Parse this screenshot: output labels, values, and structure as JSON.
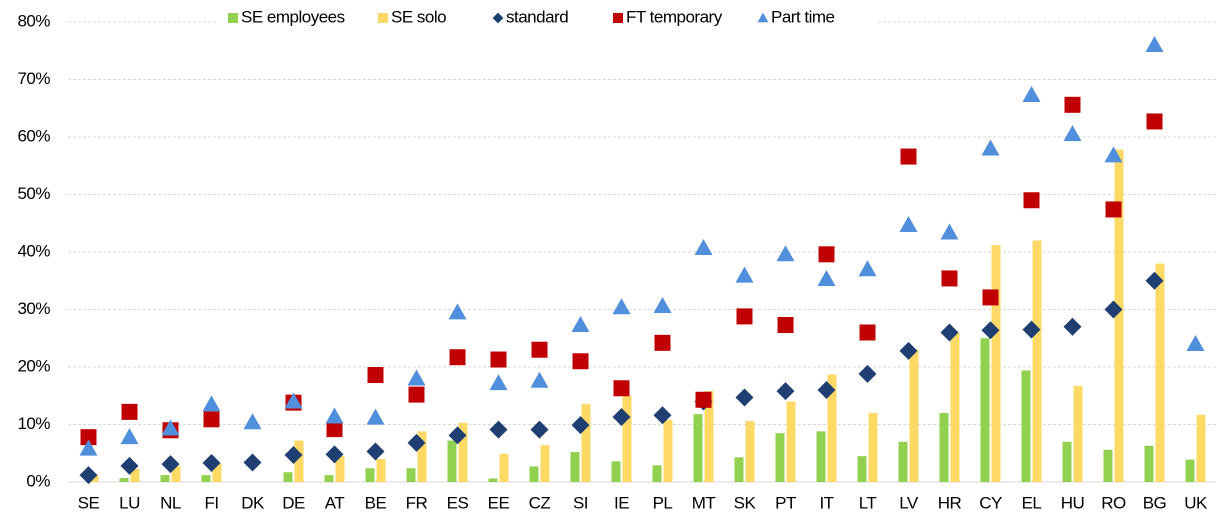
{
  "chart_data": {
    "type": "bar-scatter",
    "categories": [
      "SE",
      "LU",
      "NL",
      "FI",
      "DK",
      "DE",
      "AT",
      "BE",
      "FR",
      "ES",
      "EE",
      "CZ",
      "SI",
      "IE",
      "PL",
      "MT",
      "SK",
      "PT",
      "IT",
      "LT",
      "LV",
      "HR",
      "CY",
      "EL",
      "HU",
      "RO",
      "BG",
      "UK"
    ],
    "series": [
      {
        "name": "SE employees",
        "color": "#92d050",
        "marker": "bar",
        "values": [
          0,
          0.7,
          1.2,
          1.2,
          0,
          1.7,
          1.2,
          2.4,
          2.4,
          7.2,
          0.6,
          2.7,
          5.2,
          3.6,
          2.9,
          11.8,
          4.3,
          8.5,
          8.8,
          4.5,
          7,
          12,
          25,
          19.4,
          7,
          5.6,
          6.3,
          3.9
        ]
      },
      {
        "name": "SE solo",
        "color": "#ffd966",
        "marker": "bar",
        "values": [
          1.2,
          2.3,
          2.8,
          3.2,
          null,
          7.2,
          4.5,
          4,
          8.8,
          10.3,
          4.9,
          6.4,
          13.6,
          15,
          10.8,
          15.8,
          10.6,
          14,
          18.7,
          12,
          23,
          26,
          41.2,
          42,
          16.7,
          57.8,
          38,
          11.7
        ]
      },
      {
        "name": "standard",
        "color": "#1f3f73",
        "marker": "diamond",
        "values": [
          1.2,
          2.8,
          3.1,
          3.3,
          3.4,
          4.7,
          4.8,
          5.3,
          6.8,
          8.1,
          9.1,
          9.1,
          9.9,
          11.3,
          11.6,
          14,
          14.7,
          15.8,
          16,
          18.8,
          22.8,
          26,
          26.4,
          26.5,
          27,
          30,
          35,
          null
        ]
      },
      {
        "name": "FT temporary",
        "color": "#c00000",
        "marker": "square",
        "values": [
          7.8,
          12.2,
          9,
          10.9,
          null,
          13.8,
          9.2,
          18.6,
          15.2,
          21.7,
          21.3,
          23,
          21,
          16.3,
          24.2,
          14.3,
          28.8,
          27.3,
          39.6,
          26,
          56.6,
          35.4,
          32.1,
          49,
          65.6,
          47.4,
          62.7,
          null
        ]
      },
      {
        "name": "Part time",
        "color": "#4f8fdc",
        "marker": "triangle",
        "values": [
          5.8,
          7.8,
          9.3,
          13.5,
          10.4,
          14,
          11.4,
          11.2,
          18,
          29.5,
          17.2,
          17.6,
          27.3,
          30.4,
          30.6,
          40.7,
          35.9,
          39.6,
          35.3,
          37,
          44.7,
          43.4,
          58,
          67.3,
          60.5,
          56.8,
          76,
          24
        ]
      }
    ],
    "ylim": [
      0,
      80
    ],
    "yticks": [
      {
        "value": 0,
        "label": "0%"
      },
      {
        "value": 10,
        "label": "10%"
      },
      {
        "value": 20,
        "label": "20%"
      },
      {
        "value": 30,
        "label": "30%"
      },
      {
        "value": 40,
        "label": "40%"
      },
      {
        "value": 50,
        "label": "50%"
      },
      {
        "value": 60,
        "label": "60%"
      },
      {
        "value": 70,
        "label": "70%"
      },
      {
        "value": 80,
        "label": "80%"
      }
    ],
    "grid": true,
    "legend": "top"
  }
}
